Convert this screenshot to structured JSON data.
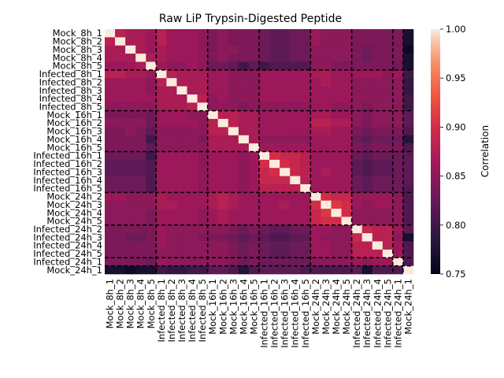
{
  "chart_data": {
    "type": "heatmap",
    "title": "Raw LiP Trypsin-Digested Peptide",
    "labels": [
      "Mock_8h_1",
      "Mock_8h_2",
      "Mock_8h_3",
      "Mock_8h_4",
      "Mock_8h_5",
      "Infected_8h_1",
      "Infected_8h_2",
      "Infected_8h_3",
      "Infected_8h_4",
      "Infected_8h_5",
      "Mock_16h_1",
      "Mock_16h_2",
      "Mock_16h_3",
      "Mock_16h_4",
      "Mock_16h_5",
      "Infected_16h_1",
      "Infected_16h_2",
      "Infected_16h_3",
      "Infected_16h_4",
      "Infected_16h_5",
      "Mock_24h_2",
      "Mock_24h_3",
      "Mock_24h_4",
      "Mock_24h_5",
      "Infected_24h_2",
      "Infected_24h_3",
      "Infected_24h_4",
      "Infected_24h_5",
      "Infected_24h_1",
      "Mock_24h_1"
    ],
    "group_sizes": [
      5,
      5,
      5,
      5,
      4,
      4,
      1,
      1
    ],
    "colorbar": {
      "label": "Correlation",
      "min": 0.75,
      "max": 1.0,
      "ticks": [
        "0.75",
        "0.80",
        "0.85",
        "0.90",
        "0.95",
        "1.00"
      ],
      "colormap": "rocket"
    },
    "values": [
      [
        1.0,
        0.88,
        0.87,
        0.87,
        0.86,
        0.88,
        0.86,
        0.86,
        0.86,
        0.85,
        0.84,
        0.85,
        0.84,
        0.84,
        0.84,
        0.83,
        0.82,
        0.82,
        0.83,
        0.83,
        0.86,
        0.85,
        0.85,
        0.85,
        0.84,
        0.84,
        0.84,
        0.84,
        0.84,
        0.77
      ],
      [
        0.88,
        1.0,
        0.87,
        0.87,
        0.86,
        0.88,
        0.86,
        0.86,
        0.86,
        0.85,
        0.84,
        0.85,
        0.84,
        0.84,
        0.84,
        0.83,
        0.82,
        0.82,
        0.83,
        0.83,
        0.86,
        0.85,
        0.85,
        0.85,
        0.84,
        0.84,
        0.84,
        0.84,
        0.84,
        0.77
      ],
      [
        0.87,
        0.87,
        1.0,
        0.87,
        0.86,
        0.87,
        0.86,
        0.86,
        0.86,
        0.85,
        0.84,
        0.85,
        0.85,
        0.84,
        0.84,
        0.83,
        0.82,
        0.82,
        0.83,
        0.83,
        0.85,
        0.85,
        0.85,
        0.85,
        0.84,
        0.83,
        0.84,
        0.84,
        0.84,
        0.76
      ],
      [
        0.87,
        0.87,
        0.87,
        1.0,
        0.87,
        0.87,
        0.86,
        0.86,
        0.86,
        0.85,
        0.84,
        0.85,
        0.84,
        0.84,
        0.84,
        0.83,
        0.82,
        0.82,
        0.83,
        0.83,
        0.85,
        0.85,
        0.85,
        0.85,
        0.84,
        0.83,
        0.84,
        0.84,
        0.84,
        0.77
      ],
      [
        0.86,
        0.86,
        0.86,
        0.87,
        1.0,
        0.86,
        0.85,
        0.85,
        0.86,
        0.85,
        0.83,
        0.83,
        0.82,
        0.8,
        0.82,
        0.8,
        0.81,
        0.81,
        0.81,
        0.81,
        0.85,
        0.85,
        0.84,
        0.84,
        0.84,
        0.84,
        0.84,
        0.84,
        0.83,
        0.77
      ],
      [
        0.88,
        0.88,
        0.87,
        0.87,
        0.86,
        1.0,
        0.88,
        0.87,
        0.87,
        0.87,
        0.86,
        0.86,
        0.85,
        0.85,
        0.85,
        0.86,
        0.86,
        0.86,
        0.86,
        0.86,
        0.87,
        0.87,
        0.86,
        0.86,
        0.86,
        0.86,
        0.86,
        0.85,
        0.86,
        0.8
      ],
      [
        0.86,
        0.86,
        0.86,
        0.86,
        0.85,
        0.88,
        1.0,
        0.87,
        0.87,
        0.87,
        0.86,
        0.86,
        0.85,
        0.85,
        0.85,
        0.86,
        0.86,
        0.86,
        0.86,
        0.86,
        0.86,
        0.87,
        0.86,
        0.86,
        0.85,
        0.85,
        0.85,
        0.85,
        0.85,
        0.79
      ],
      [
        0.86,
        0.86,
        0.86,
        0.86,
        0.85,
        0.87,
        0.87,
        1.0,
        0.87,
        0.87,
        0.86,
        0.86,
        0.85,
        0.85,
        0.85,
        0.86,
        0.86,
        0.86,
        0.86,
        0.86,
        0.86,
        0.86,
        0.86,
        0.86,
        0.85,
        0.85,
        0.85,
        0.85,
        0.85,
        0.79
      ],
      [
        0.86,
        0.86,
        0.86,
        0.86,
        0.86,
        0.87,
        0.87,
        0.87,
        1.0,
        0.88,
        0.85,
        0.86,
        0.85,
        0.85,
        0.85,
        0.86,
        0.86,
        0.86,
        0.86,
        0.86,
        0.86,
        0.86,
        0.86,
        0.86,
        0.85,
        0.85,
        0.85,
        0.85,
        0.85,
        0.8
      ],
      [
        0.85,
        0.85,
        0.85,
        0.85,
        0.85,
        0.87,
        0.87,
        0.87,
        0.88,
        1.0,
        0.85,
        0.85,
        0.85,
        0.84,
        0.85,
        0.85,
        0.85,
        0.85,
        0.85,
        0.85,
        0.86,
        0.86,
        0.85,
        0.85,
        0.85,
        0.84,
        0.85,
        0.85,
        0.85,
        0.8
      ],
      [
        0.84,
        0.84,
        0.84,
        0.84,
        0.83,
        0.86,
        0.86,
        0.86,
        0.85,
        0.85,
        1.0,
        0.88,
        0.88,
        0.87,
        0.87,
        0.86,
        0.86,
        0.86,
        0.86,
        0.86,
        0.87,
        0.87,
        0.86,
        0.86,
        0.85,
        0.84,
        0.85,
        0.85,
        0.85,
        0.82
      ],
      [
        0.85,
        0.85,
        0.85,
        0.85,
        0.83,
        0.86,
        0.86,
        0.86,
        0.86,
        0.85,
        0.88,
        1.0,
        0.88,
        0.87,
        0.87,
        0.86,
        0.86,
        0.86,
        0.86,
        0.86,
        0.88,
        0.88,
        0.87,
        0.87,
        0.85,
        0.84,
        0.85,
        0.85,
        0.85,
        0.82
      ],
      [
        0.84,
        0.84,
        0.85,
        0.84,
        0.82,
        0.85,
        0.85,
        0.85,
        0.85,
        0.85,
        0.88,
        0.88,
        1.0,
        0.87,
        0.87,
        0.86,
        0.86,
        0.86,
        0.86,
        0.86,
        0.87,
        0.87,
        0.86,
        0.86,
        0.84,
        0.83,
        0.84,
        0.84,
        0.84,
        0.81
      ],
      [
        0.84,
        0.84,
        0.84,
        0.84,
        0.8,
        0.85,
        0.85,
        0.85,
        0.85,
        0.84,
        0.87,
        0.87,
        0.87,
        1.0,
        0.87,
        0.85,
        0.85,
        0.85,
        0.85,
        0.85,
        0.86,
        0.86,
        0.86,
        0.86,
        0.83,
        0.82,
        0.83,
        0.83,
        0.83,
        0.78
      ],
      [
        0.84,
        0.84,
        0.84,
        0.84,
        0.82,
        0.85,
        0.85,
        0.85,
        0.85,
        0.85,
        0.87,
        0.87,
        0.87,
        0.87,
        1.0,
        0.86,
        0.86,
        0.86,
        0.86,
        0.86,
        0.86,
        0.86,
        0.86,
        0.86,
        0.84,
        0.83,
        0.84,
        0.84,
        0.84,
        0.81
      ],
      [
        0.83,
        0.83,
        0.83,
        0.83,
        0.8,
        0.86,
        0.86,
        0.86,
        0.86,
        0.85,
        0.86,
        0.86,
        0.86,
        0.85,
        0.86,
        1.0,
        0.9,
        0.89,
        0.89,
        0.88,
        0.86,
        0.86,
        0.86,
        0.86,
        0.83,
        0.82,
        0.83,
        0.83,
        0.83,
        0.82
      ],
      [
        0.82,
        0.82,
        0.82,
        0.82,
        0.81,
        0.86,
        0.86,
        0.86,
        0.86,
        0.85,
        0.86,
        0.86,
        0.86,
        0.85,
        0.86,
        0.9,
        1.0,
        0.9,
        0.89,
        0.88,
        0.86,
        0.86,
        0.86,
        0.86,
        0.82,
        0.81,
        0.82,
        0.82,
        0.83,
        0.82
      ],
      [
        0.82,
        0.82,
        0.82,
        0.82,
        0.81,
        0.86,
        0.86,
        0.86,
        0.86,
        0.85,
        0.86,
        0.86,
        0.86,
        0.85,
        0.86,
        0.89,
        0.9,
        1.0,
        0.89,
        0.88,
        0.86,
        0.87,
        0.86,
        0.86,
        0.82,
        0.81,
        0.82,
        0.82,
        0.83,
        0.82
      ],
      [
        0.83,
        0.83,
        0.83,
        0.83,
        0.81,
        0.86,
        0.86,
        0.86,
        0.86,
        0.85,
        0.86,
        0.86,
        0.86,
        0.85,
        0.86,
        0.89,
        0.89,
        0.89,
        1.0,
        0.88,
        0.86,
        0.86,
        0.86,
        0.86,
        0.83,
        0.82,
        0.83,
        0.83,
        0.83,
        0.82
      ],
      [
        0.83,
        0.83,
        0.83,
        0.83,
        0.81,
        0.86,
        0.86,
        0.86,
        0.86,
        0.85,
        0.86,
        0.86,
        0.86,
        0.85,
        0.86,
        0.88,
        0.88,
        0.88,
        0.88,
        1.0,
        0.86,
        0.86,
        0.86,
        0.86,
        0.83,
        0.82,
        0.83,
        0.83,
        0.83,
        0.81
      ],
      [
        0.86,
        0.86,
        0.85,
        0.85,
        0.85,
        0.87,
        0.86,
        0.86,
        0.86,
        0.86,
        0.87,
        0.88,
        0.87,
        0.86,
        0.86,
        0.86,
        0.86,
        0.86,
        0.86,
        0.86,
        1.0,
        0.9,
        0.89,
        0.89,
        0.86,
        0.86,
        0.86,
        0.86,
        0.85,
        0.81
      ],
      [
        0.85,
        0.85,
        0.85,
        0.85,
        0.85,
        0.87,
        0.87,
        0.86,
        0.86,
        0.86,
        0.87,
        0.88,
        0.87,
        0.86,
        0.86,
        0.86,
        0.86,
        0.87,
        0.86,
        0.86,
        0.9,
        1.0,
        0.91,
        0.9,
        0.86,
        0.85,
        0.86,
        0.86,
        0.85,
        0.81
      ],
      [
        0.85,
        0.85,
        0.85,
        0.85,
        0.84,
        0.86,
        0.86,
        0.86,
        0.86,
        0.85,
        0.86,
        0.87,
        0.86,
        0.86,
        0.86,
        0.86,
        0.86,
        0.86,
        0.86,
        0.86,
        0.89,
        0.91,
        1.0,
        0.9,
        0.85,
        0.85,
        0.85,
        0.85,
        0.85,
        0.81
      ],
      [
        0.85,
        0.85,
        0.85,
        0.85,
        0.84,
        0.86,
        0.86,
        0.86,
        0.86,
        0.85,
        0.86,
        0.87,
        0.86,
        0.86,
        0.86,
        0.86,
        0.86,
        0.86,
        0.86,
        0.86,
        0.89,
        0.9,
        0.9,
        1.0,
        0.85,
        0.85,
        0.85,
        0.85,
        0.85,
        0.81
      ],
      [
        0.84,
        0.84,
        0.84,
        0.84,
        0.84,
        0.86,
        0.85,
        0.85,
        0.85,
        0.85,
        0.85,
        0.85,
        0.84,
        0.83,
        0.84,
        0.83,
        0.82,
        0.82,
        0.83,
        0.83,
        0.86,
        0.86,
        0.85,
        0.85,
        1.0,
        0.89,
        0.88,
        0.88,
        0.86,
        0.82
      ],
      [
        0.84,
        0.84,
        0.83,
        0.83,
        0.84,
        0.86,
        0.85,
        0.85,
        0.85,
        0.84,
        0.84,
        0.84,
        0.83,
        0.82,
        0.83,
        0.82,
        0.81,
        0.81,
        0.82,
        0.82,
        0.86,
        0.85,
        0.85,
        0.85,
        0.89,
        1.0,
        0.88,
        0.88,
        0.85,
        0.77
      ],
      [
        0.84,
        0.84,
        0.84,
        0.84,
        0.84,
        0.86,
        0.85,
        0.85,
        0.85,
        0.85,
        0.85,
        0.85,
        0.84,
        0.83,
        0.84,
        0.83,
        0.82,
        0.82,
        0.83,
        0.83,
        0.86,
        0.86,
        0.85,
        0.85,
        0.88,
        0.88,
        1.0,
        0.88,
        0.86,
        0.81
      ],
      [
        0.84,
        0.84,
        0.84,
        0.84,
        0.84,
        0.85,
        0.85,
        0.85,
        0.85,
        0.85,
        0.85,
        0.85,
        0.84,
        0.83,
        0.84,
        0.83,
        0.82,
        0.82,
        0.83,
        0.83,
        0.86,
        0.86,
        0.85,
        0.85,
        0.88,
        0.88,
        0.88,
        1.0,
        0.86,
        0.81
      ],
      [
        0.84,
        0.84,
        0.84,
        0.84,
        0.83,
        0.86,
        0.85,
        0.85,
        0.85,
        0.85,
        0.85,
        0.85,
        0.84,
        0.83,
        0.84,
        0.83,
        0.83,
        0.83,
        0.83,
        0.83,
        0.85,
        0.85,
        0.85,
        0.85,
        0.86,
        0.85,
        0.86,
        0.86,
        1.0,
        0.81
      ],
      [
        0.77,
        0.77,
        0.76,
        0.77,
        0.77,
        0.8,
        0.79,
        0.79,
        0.8,
        0.8,
        0.82,
        0.82,
        0.81,
        0.78,
        0.81,
        0.82,
        0.82,
        0.82,
        0.82,
        0.81,
        0.81,
        0.81,
        0.81,
        0.81,
        0.82,
        0.77,
        0.81,
        0.81,
        0.81,
        1.0
      ]
    ]
  }
}
